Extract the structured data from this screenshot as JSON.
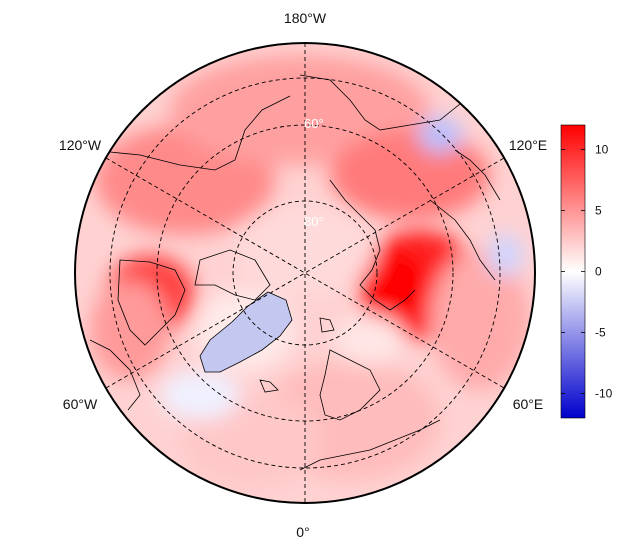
{
  "map": {
    "projection": "north-polar-stereographic",
    "longitude_labels": {
      "top": "180°W",
      "bottom": "0°",
      "upper_left": "120°W",
      "upper_right": "120°E",
      "lower_left": "60°W",
      "lower_right": "60°E"
    },
    "latitude_labels": {
      "inner": "80°",
      "outer": "60°"
    },
    "graticule": "dashed",
    "palette": {
      "low": "#0000cc",
      "mid": "#ffffff",
      "high": "#ff0000"
    }
  },
  "colorbar": {
    "min": -12,
    "max": 12,
    "ticks": [
      "10",
      "5",
      "0",
      "-5",
      "-10"
    ],
    "tick_values": [
      10,
      5,
      0,
      -5,
      -10
    ]
  }
}
